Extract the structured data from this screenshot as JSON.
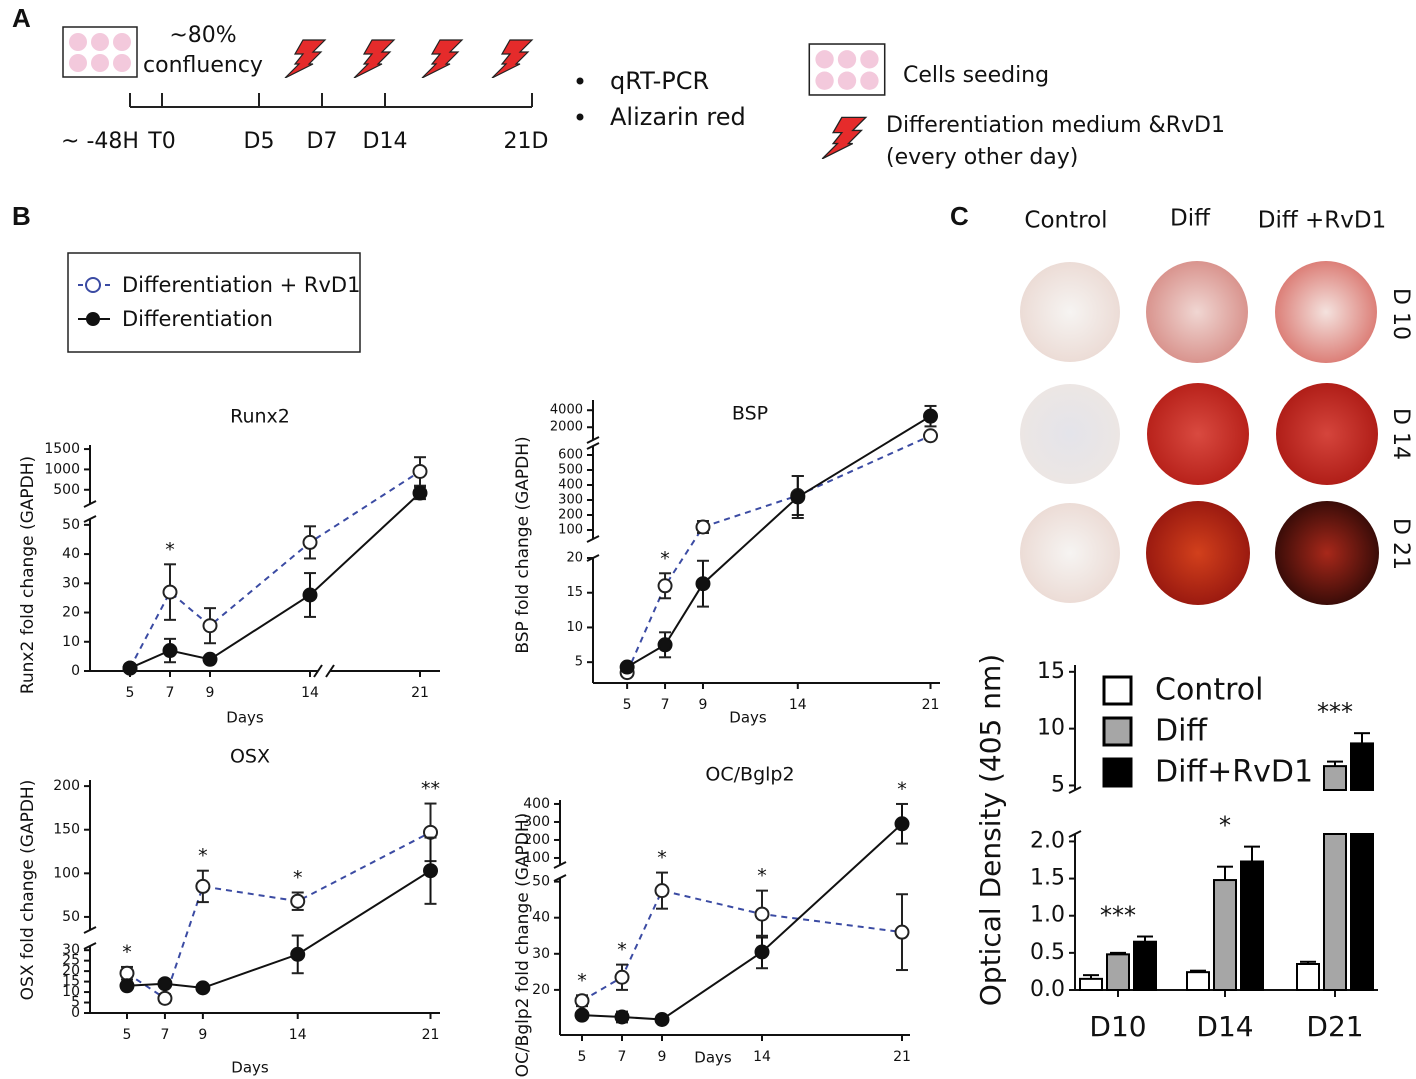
{
  "panel_labels": {
    "a": "A",
    "b": "B",
    "c": "C"
  },
  "timeline": {
    "confluency": [
      "~80%",
      "confluency"
    ],
    "ticks": [
      "~ -48H",
      "T0",
      "D5",
      "D7",
      "D14",
      "21D"
    ],
    "readouts": [
      "qRT-PCR",
      "Alizarin red"
    ],
    "legend": {
      "seeding": "Cells seeding",
      "medium": [
        "Differentiation medium &RvD1",
        "(every other day)"
      ]
    }
  },
  "staining": {
    "columns": [
      "Control",
      "Diff",
      "Diff +RvD1"
    ],
    "rows": [
      "D 10",
      "D 14",
      "D 21"
    ]
  },
  "chart_data": [
    {
      "type": "line",
      "title": "Runx2",
      "xlabel": "Days",
      "ylabel": "Runx2 fold change (GAPDH)",
      "x": [
        5,
        7,
        9,
        14,
        21
      ],
      "xticks": [
        5,
        7,
        9,
        14,
        21
      ],
      "xlim": [
        3,
        22
      ],
      "xbreak": [
        14.6,
        16.1
      ],
      "y_segments": [
        {
          "ylim": [
            0,
            52
          ],
          "yticks": [
            0,
            10,
            20,
            30,
            40,
            50
          ]
        },
        {
          "ylim": [
            150,
            1600
          ],
          "yticks": [
            500,
            1000,
            1500
          ]
        }
      ],
      "series": [
        {
          "name": "Differentiation + RvD1",
          "color": "#3b4ba3",
          "dashed": true,
          "marker": "open",
          "values": [
            1,
            27,
            15.5,
            44,
            950
          ],
          "errors": [
            1,
            9.5,
            6,
            5.5,
            350
          ]
        },
        {
          "name": "Differentiation",
          "color": "#111111",
          "dashed": false,
          "marker": "filled",
          "values": [
            1,
            7,
            4,
            26,
            420
          ],
          "errors": [
            0.5,
            4,
            1,
            7.5,
            150
          ]
        }
      ],
      "annotations": [
        {
          "x": 7,
          "label": "*"
        }
      ]
    },
    {
      "type": "line",
      "title": "BSP",
      "xlabel": "Days",
      "ylabel": "BSP fold change (GAPDH)",
      "x": [
        5,
        7,
        9,
        14,
        21
      ],
      "xticks": [
        5,
        7,
        9,
        14,
        21
      ],
      "xlim": [
        3.2,
        21.5
      ],
      "y_segments": [
        {
          "ylim": [
            2,
            20
          ],
          "yticks": [
            5,
            10,
            15,
            20
          ]
        },
        {
          "ylim": [
            40,
            660
          ],
          "yticks": [
            100,
            200,
            300,
            400,
            500,
            600
          ]
        },
        {
          "ylim": [
            500,
            5200
          ],
          "yticks": [
            2000,
            4000
          ]
        }
      ],
      "series": [
        {
          "color": "#3b4ba3",
          "dashed": true,
          "marker": "open",
          "values": [
            3.5,
            16,
            120,
            330,
            1000
          ],
          "errors": [
            0.3,
            1.8,
            40,
            130,
            300
          ]
        },
        {
          "color": "#111111",
          "dashed": false,
          "marker": "filled",
          "values": [
            4.3,
            7.5,
            16.3,
            320,
            3300
          ],
          "errors": [
            0.5,
            1.8,
            3.3,
            140,
            1200
          ]
        }
      ],
      "annotations": [
        {
          "x": 7,
          "label": "*"
        }
      ]
    },
    {
      "type": "line",
      "title": "OSX",
      "xlabel": "Days",
      "ylabel": "OSX fold change (GAPDH)",
      "x": [
        5,
        7,
        9,
        14,
        21
      ],
      "xticks": [
        5,
        7,
        9,
        14,
        21
      ],
      "xlim": [
        3.05,
        21.5
      ],
      "y_segments": [
        {
          "ylim": [
            0,
            32
          ],
          "yticks": [
            0,
            5,
            10,
            15,
            20,
            25,
            30
          ]
        },
        {
          "ylim": [
            35,
            207
          ],
          "yticks": [
            50,
            100,
            150,
            200
          ]
        }
      ],
      "series": [
        {
          "color": "#3b4ba3",
          "dashed": true,
          "marker": "open",
          "values": [
            19,
            7,
            85,
            68,
            147
          ],
          "errors": [
            3,
            2,
            18,
            10,
            33
          ]
        },
        {
          "color": "#111111",
          "dashed": false,
          "marker": "filled",
          "values": [
            13,
            14,
            12,
            28,
            103
          ],
          "errors": [
            1,
            1,
            1,
            9,
            38
          ]
        }
      ],
      "annotations": [
        {
          "x": 5,
          "label": "*"
        },
        {
          "x": 9,
          "label": "*"
        },
        {
          "x": 14,
          "label": "*"
        },
        {
          "x": 21,
          "label": "**"
        }
      ]
    },
    {
      "type": "line",
      "title": "OC/Bglp2",
      "xlabel": "Days",
      "ylabel": "OC/Bglp2 fold change (GAPDH)",
      "x": [
        5,
        7,
        9,
        14,
        21
      ],
      "xticks": [
        5,
        7,
        9,
        14,
        21
      ],
      "xlim": [
        3.9,
        21.4
      ],
      "y_segments": [
        {
          "ylim": [
            7.5,
            51
          ],
          "yticks": [
            20,
            30,
            40,
            50
          ]
        },
        {
          "ylim": [
            61,
            422
          ],
          "yticks": [
            100,
            200,
            300,
            400
          ]
        }
      ],
      "series": [
        {
          "color": "#3b4ba3",
          "dashed": true,
          "marker": "open",
          "values": [
            17,
            23.5,
            47.5,
            41,
            36
          ],
          "errors": [
            1.5,
            3.5,
            5,
            6.5,
            10.5
          ]
        },
        {
          "color": "#111111",
          "dashed": false,
          "marker": "filled",
          "values": [
            13,
            12.5,
            11.8,
            30.5,
            290
          ],
          "errors": [
            0.5,
            1.5,
            0.5,
            4.5,
            110
          ]
        }
      ],
      "annotations": [
        {
          "x": 5,
          "label": "*"
        },
        {
          "x": 7,
          "label": "*"
        },
        {
          "x": 9,
          "label": "*"
        },
        {
          "x": 14,
          "label": "*"
        },
        {
          "x": 21,
          "label": "*"
        }
      ]
    },
    {
      "type": "bar",
      "ylabel": "Optical Density (405 nm)",
      "categories": [
        "D10",
        "D14",
        "D21"
      ],
      "y_segments": [
        {
          "ylim": [
            0,
            2.1
          ],
          "yticks": [
            {
              "value": 0,
              "label": "0.0"
            },
            0.5,
            {
              "value": 1,
              "label": "1.0"
            },
            1.5,
            {
              "value": 2,
              "label": "2.0"
            }
          ]
        },
        {
          "ylim": [
            4.6,
            15.6
          ],
          "yticks": [
            5,
            10,
            15
          ]
        }
      ],
      "series": [
        {
          "name": "Control",
          "color": "#ffffff",
          "values": [
            0.15,
            0.24,
            0.35
          ],
          "errors": [
            0.05,
            0.02,
            0.03
          ]
        },
        {
          "name": "Diff",
          "color": "#a6a6a6",
          "values": [
            0.48,
            1.48,
            6.7
          ],
          "errors": [
            0.02,
            0.18,
            0.4
          ]
        },
        {
          "name": "Diff+RvD1",
          "color": "#000000",
          "values": [
            0.65,
            1.73,
            8.7
          ],
          "errors": [
            0.07,
            0.2,
            0.9
          ]
        }
      ],
      "annotations": [
        "***",
        "*",
        "***"
      ]
    }
  ]
}
